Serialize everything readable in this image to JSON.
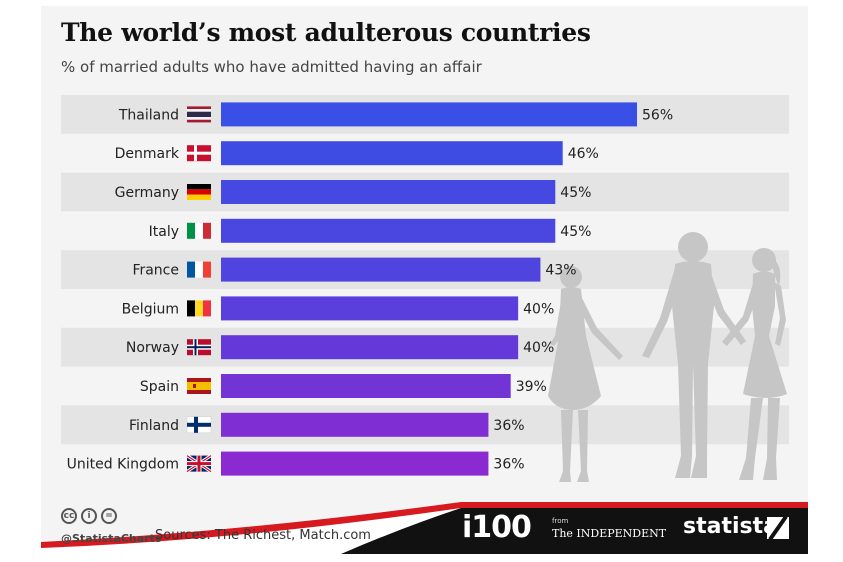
{
  "chart_data": {
    "type": "bar",
    "orientation": "horizontal",
    "title": "The world’s most adulterous countries",
    "subtitle": "% of married adults who have admitted having an affair",
    "categories": [
      "Thailand",
      "Denmark",
      "Germany",
      "Italy",
      "France",
      "Belgium",
      "Norway",
      "Spain",
      "Finland",
      "United Kingdom"
    ],
    "values": [
      56,
      46,
      45,
      45,
      43,
      40,
      40,
      39,
      36,
      36
    ],
    "value_labels": [
      "56%",
      "46%",
      "45%",
      "45%",
      "43%",
      "40%",
      "40%",
      "39%",
      "36%",
      "36%"
    ],
    "unit": "%",
    "xlim": [
      0,
      56
    ],
    "grid": false,
    "bar_colors": [
      "#3a4fe6",
      "#3f4ce4",
      "#4549e2",
      "#4a47e0",
      "#5044df",
      "#5a3fdc",
      "#6539d9",
      "#7334d6",
      "#7f2ed3",
      "#8a2ad0"
    ],
    "row_band_color": "#e4e4e4"
  },
  "flags": [
    "thailand-flag-icon",
    "denmark-flag-icon",
    "germany-flag-icon",
    "italy-flag-icon",
    "france-flag-icon",
    "belgium-flag-icon",
    "norway-flag-icon",
    "spain-flag-icon",
    "finland-flag-icon",
    "uk-flag-icon"
  ],
  "footer": {
    "license_icons": [
      "cc",
      "by",
      "nd"
    ],
    "handle": "@StatistaCharts",
    "sources": "Sources: The Richest, Match.com",
    "i100": "i100",
    "from": "from",
    "independent": "The INDEPENDENT",
    "brand": "statista"
  },
  "colors": {
    "footer_dark": "#111111",
    "footer_red": "#d71920",
    "text": "#222222"
  }
}
